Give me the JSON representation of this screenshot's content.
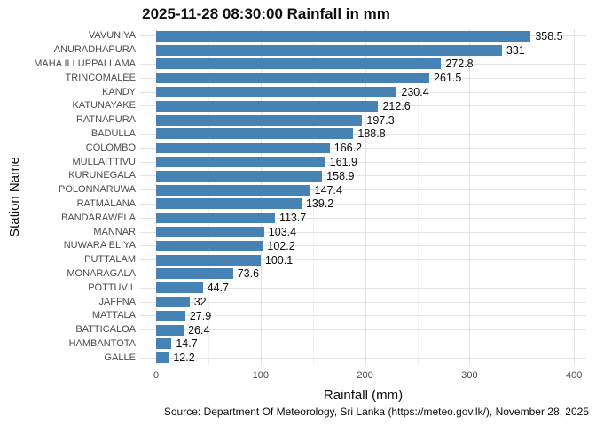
{
  "chart_data": {
    "type": "bar",
    "orientation": "horizontal",
    "title": "2025-11-28 08:30:00 Rainfall in mm",
    "xlabel": "Rainfall (mm)",
    "ylabel": "Station Name",
    "caption": "Source: Department Of Meteorology, Sri Lanka (https://meteo.gov.lk/), November 28, 2025",
    "bar_color": "#4682B4",
    "grid": true,
    "legend": "none",
    "xlim": [
      0,
      412
    ],
    "x_ticks": [
      {
        "value": 0,
        "label": "0"
      },
      {
        "value": 100,
        "label": "100"
      },
      {
        "value": 200,
        "label": "200"
      },
      {
        "value": 300,
        "label": "300"
      },
      {
        "value": 400,
        "label": "400"
      }
    ],
    "x_minor_ticks": [
      50,
      150,
      250,
      350
    ],
    "stations": [
      {
        "name": "VAVUNIYA",
        "value": 358.5,
        "label": "358.5"
      },
      {
        "name": "ANURADHAPURA",
        "value": 331,
        "label": "331"
      },
      {
        "name": "MAHA ILLUPPALLAMA",
        "value": 272.8,
        "label": "272.8"
      },
      {
        "name": "TRINCOMALEE",
        "value": 261.5,
        "label": "261.5"
      },
      {
        "name": "KANDY",
        "value": 230.4,
        "label": "230.4"
      },
      {
        "name": "KATUNAYAKE",
        "value": 212.6,
        "label": "212.6"
      },
      {
        "name": "RATNAPURA",
        "value": 197.3,
        "label": "197.3"
      },
      {
        "name": "BADULLA",
        "value": 188.8,
        "label": "188.8"
      },
      {
        "name": "COLOMBO",
        "value": 166.2,
        "label": "166.2"
      },
      {
        "name": "MULLAITTIVU",
        "value": 161.9,
        "label": "161.9"
      },
      {
        "name": "KURUNEGALA",
        "value": 158.9,
        "label": "158.9"
      },
      {
        "name": "POLONNARUWA",
        "value": 147.4,
        "label": "147.4"
      },
      {
        "name": "RATMALANA",
        "value": 139.2,
        "label": "139.2"
      },
      {
        "name": "BANDARAWELA",
        "value": 113.7,
        "label": "113.7"
      },
      {
        "name": "MANNAR",
        "value": 103.4,
        "label": "103.4"
      },
      {
        "name": "NUWARA ELIYA",
        "value": 102.2,
        "label": "102.2"
      },
      {
        "name": "PUTTALAM",
        "value": 100.1,
        "label": "100.1"
      },
      {
        "name": "MONARAGALA",
        "value": 73.6,
        "label": "73.6"
      },
      {
        "name": "POTTUVIL",
        "value": 44.7,
        "label": "44.7"
      },
      {
        "name": "JAFFNA",
        "value": 32,
        "label": "32"
      },
      {
        "name": "MATTALA",
        "value": 27.9,
        "label": "27.9"
      },
      {
        "name": "BATTICALOA",
        "value": 26.4,
        "label": "26.4"
      },
      {
        "name": "HAMBANTOTA",
        "value": 14.7,
        "label": "14.7"
      },
      {
        "name": "GALLE",
        "value": 12.2,
        "label": "12.2"
      }
    ]
  }
}
